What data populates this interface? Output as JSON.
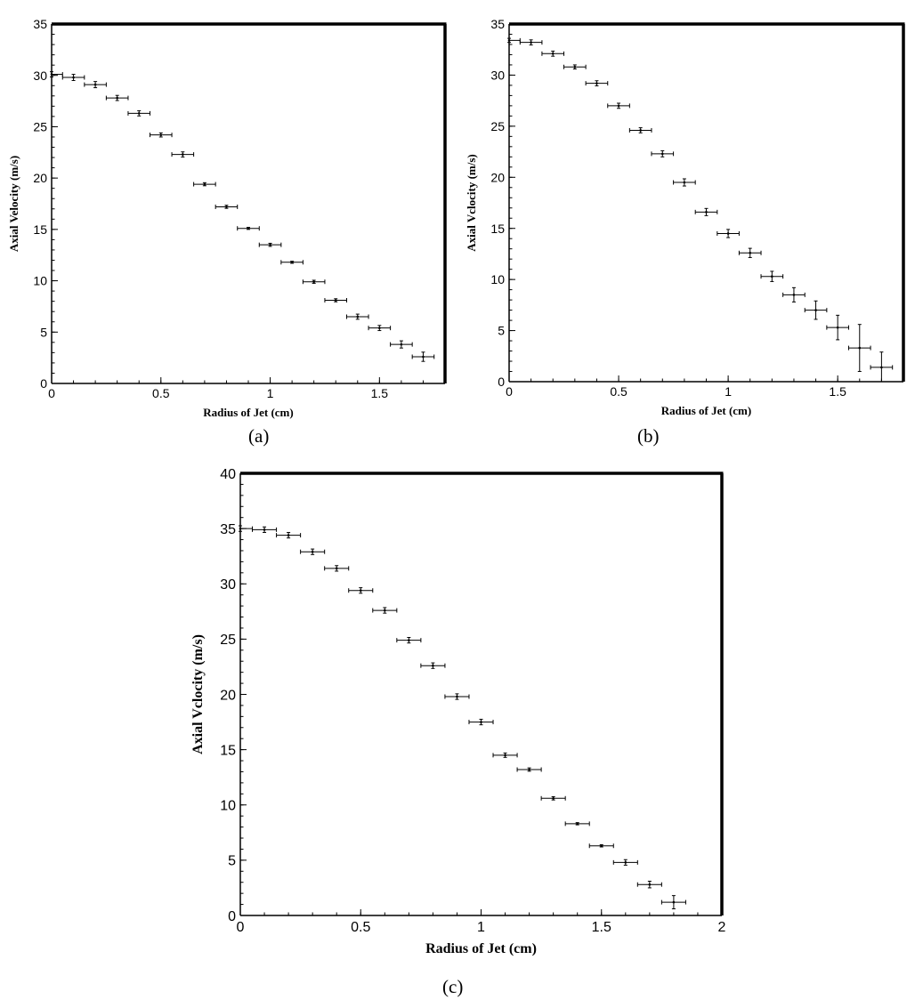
{
  "chart_data": [
    {
      "panel": "(a)",
      "type": "scatter",
      "xlabel": "Radius of Jet (cm)",
      "ylabel": "Axial Velocity (m/s)",
      "xlim": [
        0,
        1.8
      ],
      "ylim": [
        0,
        35
      ],
      "xticks": [
        "0",
        "0.5",
        "1",
        "1.5"
      ],
      "yticks": [
        "0",
        "5",
        "10",
        "15",
        "20",
        "25",
        "30",
        "35"
      ],
      "grid": false,
      "error_bars": true,
      "points": [
        {
          "x": 0.0,
          "y": 30.1,
          "yerr": 0.25,
          "xerr": 0.05
        },
        {
          "x": 0.1,
          "y": 29.8,
          "yerr": 0.3,
          "xerr": 0.05
        },
        {
          "x": 0.2,
          "y": 29.1,
          "yerr": 0.3,
          "xerr": 0.05
        },
        {
          "x": 0.3,
          "y": 27.8,
          "yerr": 0.25,
          "xerr": 0.05
        },
        {
          "x": 0.4,
          "y": 26.3,
          "yerr": 0.25,
          "xerr": 0.05
        },
        {
          "x": 0.5,
          "y": 24.2,
          "yerr": 0.2,
          "xerr": 0.05
        },
        {
          "x": 0.6,
          "y": 22.3,
          "yerr": 0.25,
          "xerr": 0.05
        },
        {
          "x": 0.7,
          "y": 19.4,
          "yerr": 0.15,
          "xerr": 0.05
        },
        {
          "x": 0.8,
          "y": 17.2,
          "yerr": 0.15,
          "xerr": 0.05
        },
        {
          "x": 0.9,
          "y": 15.1,
          "yerr": 0.1,
          "xerr": 0.05
        },
        {
          "x": 1.0,
          "y": 13.5,
          "yerr": 0.15,
          "xerr": 0.05
        },
        {
          "x": 1.1,
          "y": 11.8,
          "yerr": 0.1,
          "xerr": 0.05
        },
        {
          "x": 1.2,
          "y": 9.9,
          "yerr": 0.15,
          "xerr": 0.05
        },
        {
          "x": 1.3,
          "y": 8.1,
          "yerr": 0.15,
          "xerr": 0.05
        },
        {
          "x": 1.4,
          "y": 6.5,
          "yerr": 0.25,
          "xerr": 0.05
        },
        {
          "x": 1.5,
          "y": 5.4,
          "yerr": 0.25,
          "xerr": 0.05
        },
        {
          "x": 1.6,
          "y": 3.8,
          "yerr": 0.35,
          "xerr": 0.05
        },
        {
          "x": 1.7,
          "y": 2.6,
          "yerr": 0.45,
          "xerr": 0.05
        }
      ]
    },
    {
      "panel": "(b)",
      "type": "scatter",
      "xlabel": "Radius of Jet (cm)",
      "ylabel": "Axial Vclocity (m/s)",
      "xlim": [
        0,
        1.8
      ],
      "ylim": [
        0,
        35
      ],
      "xticks": [
        "0",
        "0.5",
        "1",
        "1.5"
      ],
      "yticks": [
        "0",
        "5",
        "10",
        "15",
        "20",
        "25",
        "30",
        "35"
      ],
      "grid": false,
      "error_bars": true,
      "points": [
        {
          "x": 0.0,
          "y": 33.4,
          "yerr": 0.2,
          "xerr": 0.05
        },
        {
          "x": 0.1,
          "y": 33.2,
          "yerr": 0.25,
          "xerr": 0.05
        },
        {
          "x": 0.2,
          "y": 32.1,
          "yerr": 0.25,
          "xerr": 0.05
        },
        {
          "x": 0.3,
          "y": 30.8,
          "yerr": 0.2,
          "xerr": 0.05
        },
        {
          "x": 0.4,
          "y": 29.2,
          "yerr": 0.25,
          "xerr": 0.05
        },
        {
          "x": 0.5,
          "y": 27.0,
          "yerr": 0.25,
          "xerr": 0.05
        },
        {
          "x": 0.6,
          "y": 24.6,
          "yerr": 0.25,
          "xerr": 0.05
        },
        {
          "x": 0.7,
          "y": 22.3,
          "yerr": 0.3,
          "xerr": 0.05
        },
        {
          "x": 0.8,
          "y": 19.5,
          "yerr": 0.35,
          "xerr": 0.05
        },
        {
          "x": 0.9,
          "y": 16.6,
          "yerr": 0.35,
          "xerr": 0.05
        },
        {
          "x": 1.0,
          "y": 14.5,
          "yerr": 0.4,
          "xerr": 0.05
        },
        {
          "x": 1.1,
          "y": 12.6,
          "yerr": 0.45,
          "xerr": 0.05
        },
        {
          "x": 1.2,
          "y": 10.3,
          "yerr": 0.5,
          "xerr": 0.05
        },
        {
          "x": 1.3,
          "y": 8.5,
          "yerr": 0.7,
          "xerr": 0.05
        },
        {
          "x": 1.4,
          "y": 7.0,
          "yerr": 0.9,
          "xerr": 0.05
        },
        {
          "x": 1.5,
          "y": 5.3,
          "yerr": 1.2,
          "xerr": 0.05
        },
        {
          "x": 1.6,
          "y": 3.3,
          "yerr": 2.3,
          "xerr": 0.05
        },
        {
          "x": 1.7,
          "y": 1.4,
          "yerr": 1.5,
          "xerr": 0.05
        }
      ]
    },
    {
      "panel": "(c)",
      "type": "scatter",
      "xlabel": "Radius of Jet (cm)",
      "ylabel": "Axial Vclocity (m/s)",
      "xlim": [
        0,
        2
      ],
      "ylim": [
        0,
        40
      ],
      "xticks": [
        "0",
        "0.5",
        "1",
        "1.5",
        "2"
      ],
      "yticks": [
        "0",
        "5",
        "10",
        "15",
        "20",
        "25",
        "30",
        "35",
        "40"
      ],
      "grid": false,
      "error_bars": true,
      "points": [
        {
          "x": 0.0,
          "y": 35.0,
          "yerr": 0.25,
          "xerr": 0.05
        },
        {
          "x": 0.1,
          "y": 34.9,
          "yerr": 0.25,
          "xerr": 0.05
        },
        {
          "x": 0.2,
          "y": 34.4,
          "yerr": 0.25,
          "xerr": 0.05
        },
        {
          "x": 0.3,
          "y": 32.9,
          "yerr": 0.25,
          "xerr": 0.05
        },
        {
          "x": 0.4,
          "y": 31.4,
          "yerr": 0.25,
          "xerr": 0.05
        },
        {
          "x": 0.5,
          "y": 29.4,
          "yerr": 0.25,
          "xerr": 0.05
        },
        {
          "x": 0.6,
          "y": 27.6,
          "yerr": 0.25,
          "xerr": 0.05
        },
        {
          "x": 0.7,
          "y": 24.9,
          "yerr": 0.25,
          "xerr": 0.05
        },
        {
          "x": 0.8,
          "y": 22.6,
          "yerr": 0.25,
          "xerr": 0.05
        },
        {
          "x": 0.9,
          "y": 19.8,
          "yerr": 0.25,
          "xerr": 0.05
        },
        {
          "x": 1.0,
          "y": 17.5,
          "yerr": 0.25,
          "xerr": 0.05
        },
        {
          "x": 1.1,
          "y": 14.5,
          "yerr": 0.2,
          "xerr": 0.05
        },
        {
          "x": 1.2,
          "y": 13.2,
          "yerr": 0.15,
          "xerr": 0.05
        },
        {
          "x": 1.3,
          "y": 10.6,
          "yerr": 0.15,
          "xerr": 0.05
        },
        {
          "x": 1.4,
          "y": 8.3,
          "yerr": 0.1,
          "xerr": 0.05
        },
        {
          "x": 1.5,
          "y": 6.3,
          "yerr": 0.1,
          "xerr": 0.05
        },
        {
          "x": 1.6,
          "y": 4.8,
          "yerr": 0.25,
          "xerr": 0.05
        },
        {
          "x": 1.7,
          "y": 2.8,
          "yerr": 0.3,
          "xerr": 0.05
        },
        {
          "x": 1.8,
          "y": 1.2,
          "yerr": 0.6,
          "xerr": 0.05
        }
      ]
    }
  ]
}
